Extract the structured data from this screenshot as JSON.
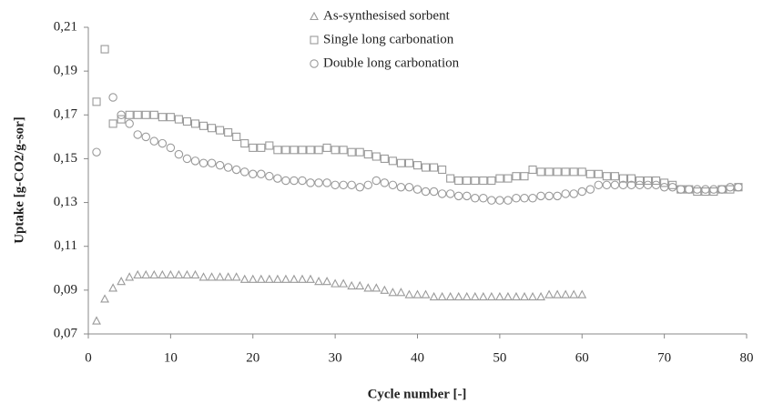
{
  "chart_data": {
    "type": "scatter",
    "xlabel": "Cycle number [-]",
    "ylabel": "Uptake [g-CO2/g-sor]",
    "xlim": [
      0,
      80
    ],
    "xticks": [
      0,
      10,
      20,
      30,
      40,
      50,
      60,
      70,
      80
    ],
    "ylim": [
      0.07,
      0.21
    ],
    "yticks": [
      {
        "value": 0.07,
        "label": "0,07"
      },
      {
        "value": 0.09,
        "label": "0,09"
      },
      {
        "value": 0.11,
        "label": "0,11"
      },
      {
        "value": 0.13,
        "label": "0,13"
      },
      {
        "value": 0.15,
        "label": "0,15"
      },
      {
        "value": 0.17,
        "label": "0,17"
      },
      {
        "value": 0.19,
        "label": "0,19"
      },
      {
        "value": 0.21,
        "label": "0,21"
      }
    ],
    "legend": "top",
    "x": [
      1,
      2,
      3,
      4,
      5,
      6,
      7,
      8,
      9,
      10,
      11,
      12,
      13,
      14,
      15,
      16,
      17,
      18,
      19,
      20,
      21,
      22,
      23,
      24,
      25,
      26,
      27,
      28,
      29,
      30,
      31,
      32,
      33,
      34,
      35,
      36,
      37,
      38,
      39,
      40,
      41,
      42,
      43,
      44,
      45,
      46,
      47,
      48,
      49,
      50,
      51,
      52,
      53,
      54,
      55,
      56,
      57,
      58,
      59,
      60,
      61,
      62,
      63,
      64,
      65,
      66,
      67,
      68,
      69,
      70,
      71,
      72,
      73,
      74,
      75,
      76,
      77,
      78,
      79
    ],
    "series": [
      {
        "name": "As-synthesised sorbent",
        "marker": "triangle",
        "color": "#9a9a9a",
        "values": [
          0.076,
          0.086,
          0.091,
          0.094,
          0.096,
          0.097,
          0.097,
          0.097,
          0.097,
          0.097,
          0.097,
          0.097,
          0.097,
          0.096,
          0.096,
          0.096,
          0.096,
          0.096,
          0.095,
          0.095,
          0.095,
          0.095,
          0.095,
          0.095,
          0.095,
          0.095,
          0.095,
          0.094,
          0.094,
          0.093,
          0.093,
          0.092,
          0.092,
          0.091,
          0.091,
          0.09,
          0.089,
          0.089,
          0.088,
          0.088,
          0.088,
          0.087,
          0.087,
          0.087,
          0.087,
          0.087,
          0.087,
          0.087,
          0.087,
          0.087,
          0.087,
          0.087,
          0.087,
          0.087,
          0.087,
          0.088,
          0.088,
          0.088,
          0.088,
          0.088,
          null,
          null,
          null,
          null,
          null,
          null,
          null,
          null,
          null,
          null,
          null,
          null,
          null,
          null,
          null,
          null,
          null,
          null,
          null
        ]
      },
      {
        "name": "Single long carbonation",
        "marker": "square",
        "color": "#9a9a9a",
        "values": [
          0.176,
          0.2,
          0.166,
          0.168,
          0.17,
          0.17,
          0.17,
          0.17,
          0.169,
          0.169,
          0.168,
          0.167,
          0.166,
          0.165,
          0.164,
          0.163,
          0.162,
          0.16,
          0.157,
          0.155,
          0.155,
          0.156,
          0.154,
          0.154,
          0.154,
          0.154,
          0.154,
          0.154,
          0.155,
          0.154,
          0.154,
          0.153,
          0.153,
          0.152,
          0.151,
          0.15,
          0.149,
          0.148,
          0.148,
          0.147,
          0.146,
          0.146,
          0.145,
          0.141,
          0.14,
          0.14,
          0.14,
          0.14,
          0.14,
          0.141,
          0.141,
          0.142,
          0.142,
          0.145,
          0.144,
          0.144,
          0.144,
          0.144,
          0.144,
          0.144,
          0.143,
          0.143,
          0.142,
          0.142,
          0.141,
          0.141,
          0.14,
          0.14,
          0.14,
          0.139,
          0.138,
          0.136,
          0.136,
          0.135,
          0.135,
          0.135,
          0.136,
          0.136,
          0.137
        ]
      },
      {
        "name": "Double long carbonation",
        "marker": "circle",
        "color": "#9a9a9a",
        "values": [
          0.153,
          null,
          0.178,
          0.17,
          0.166,
          0.161,
          0.16,
          0.158,
          0.157,
          0.155,
          0.152,
          0.15,
          0.149,
          0.148,
          0.148,
          0.147,
          0.146,
          0.145,
          0.144,
          0.143,
          0.143,
          0.142,
          0.141,
          0.14,
          0.14,
          0.14,
          0.139,
          0.139,
          0.139,
          0.138,
          0.138,
          0.138,
          0.137,
          0.138,
          0.14,
          0.139,
          0.138,
          0.137,
          0.137,
          0.136,
          0.135,
          0.135,
          0.134,
          0.134,
          0.133,
          0.133,
          0.132,
          0.132,
          0.131,
          0.131,
          0.131,
          0.132,
          0.132,
          0.132,
          0.133,
          0.133,
          0.133,
          0.134,
          0.134,
          0.135,
          0.136,
          0.138,
          0.138,
          0.138,
          0.138,
          0.138,
          0.138,
          0.138,
          0.138,
          0.137,
          0.137,
          0.136,
          0.136,
          0.136,
          0.136,
          0.136,
          0.136,
          0.137,
          0.137
        ]
      }
    ]
  }
}
